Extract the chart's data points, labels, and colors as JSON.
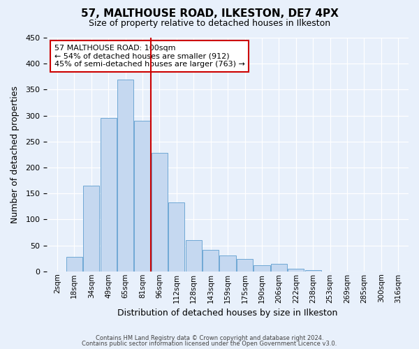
{
  "title": "57, MALTHOUSE ROAD, ILKESTON, DE7 4PX",
  "subtitle": "Size of property relative to detached houses in Ilkeston",
  "xlabel": "Distribution of detached houses by size in Ilkeston",
  "ylabel": "Number of detached properties",
  "bin_labels": [
    "2sqm",
    "18sqm",
    "34sqm",
    "49sqm",
    "65sqm",
    "81sqm",
    "96sqm",
    "112sqm",
    "128sqm",
    "143sqm",
    "159sqm",
    "175sqm",
    "190sqm",
    "206sqm",
    "222sqm",
    "238sqm",
    "253sqm",
    "269sqm",
    "285sqm",
    "300sqm",
    "316sqm"
  ],
  "bar_values": [
    0,
    28,
    165,
    295,
    370,
    290,
    228,
    133,
    60,
    42,
    30,
    24,
    12,
    14,
    5,
    2,
    0,
    0,
    0,
    0,
    0
  ],
  "bar_color": "#c5d8f0",
  "bar_edge_color": "#6fa8d4",
  "vline_x_index": 6,
  "vline_color": "#cc0000",
  "ylim": [
    0,
    450
  ],
  "yticks": [
    0,
    50,
    100,
    150,
    200,
    250,
    300,
    350,
    400,
    450
  ],
  "annotation_title": "57 MALTHOUSE ROAD: 100sqm",
  "annotation_line1": "← 54% of detached houses are smaller (912)",
  "annotation_line2": "45% of semi-detached houses are larger (763) →",
  "annotation_box_color": "#ffffff",
  "annotation_box_edge": "#cc0000",
  "footer1": "Contains HM Land Registry data © Crown copyright and database right 2024.",
  "footer2": "Contains public sector information licensed under the Open Government Licence v3.0.",
  "bg_color": "#e8f0fb",
  "plot_bg_color": "#e8f0fb"
}
